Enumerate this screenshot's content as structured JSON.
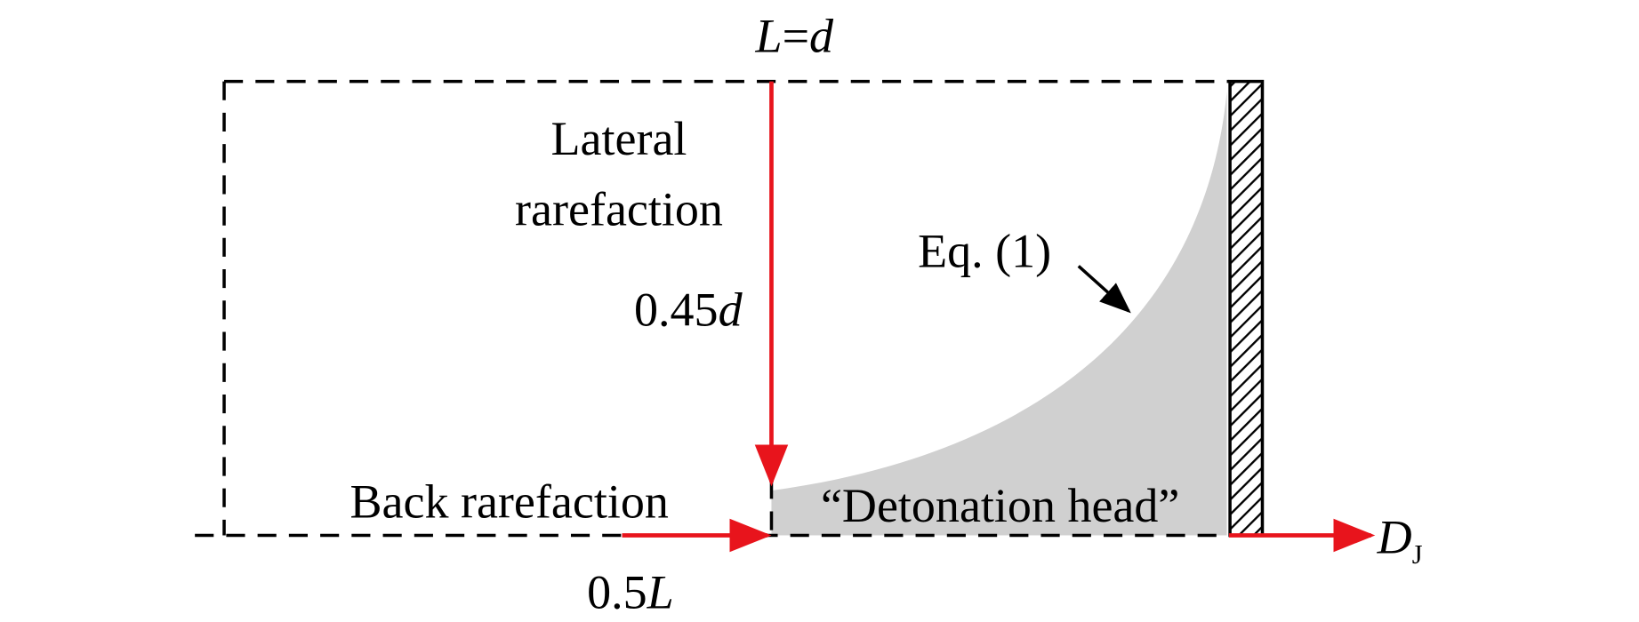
{
  "top_label": [
    "L",
    "=",
    "d"
  ],
  "lateral": {
    "line1": "Lateral",
    "line2": "rarefaction",
    "speed": [
      "0.45",
      "d"
    ]
  },
  "equation_label": "Eq. (1)",
  "back": {
    "label": "Back rarefaction",
    "speed": [
      "0.5",
      "L"
    ]
  },
  "head_label": "“Detonation head”",
  "velocity": [
    "D",
    "J"
  ]
}
